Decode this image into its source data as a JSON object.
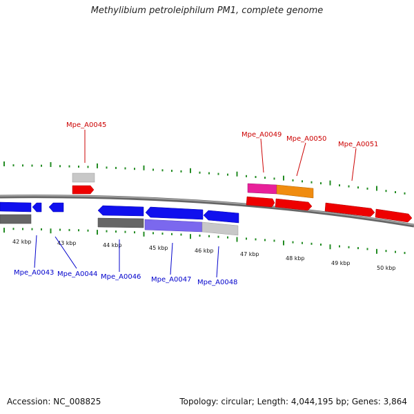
{
  "title": "Methylibium petroleiphilum PM1, complete genome",
  "footer": {
    "accession": "Accession: NC_008825",
    "summary": "Topology: circular; Length: 4,044,195 bp; Genes: 3,864"
  },
  "colors": {
    "backbone": "#777777",
    "tick_green": "#228b22",
    "forward_label": "#cc0000",
    "reverse_label": "#0000cc",
    "red_gene": "#ee0000",
    "blue_gene": "#1010ee",
    "grey_bar": "#666666",
    "light_grey_bar": "#c8c8c8",
    "purple_bar": "#7b68ee",
    "pink_bar": "#e8209a",
    "orange_bar": "#f08c10"
  },
  "ruler_labels": [
    "42 kbp",
    "43 kbp",
    "44 kbp",
    "45 kbp",
    "46 kbp",
    "47 kbp",
    "48 kbp",
    "49 kbp",
    "50 kbp"
  ],
  "forward_gene_labels": [
    "Mpe_A0045",
    "Mpe_A0049",
    "Mpe_A0050",
    "Mpe_A0051"
  ],
  "reverse_gene_labels": [
    "Mpe_A0043",
    "Mpe_A0044",
    "Mpe_A0046",
    "Mpe_A0047",
    "Mpe_A0048"
  ]
}
